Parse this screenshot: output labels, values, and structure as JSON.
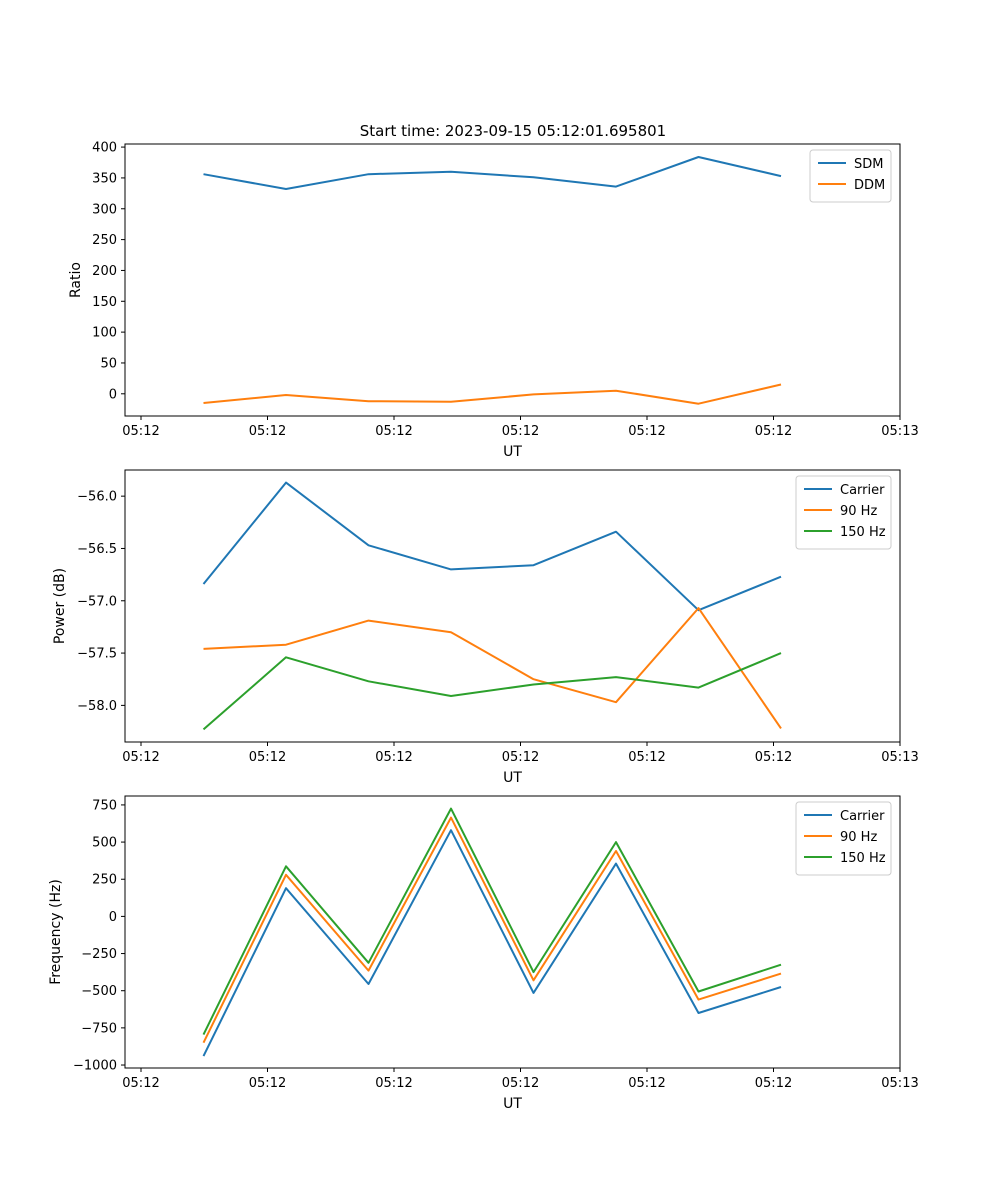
{
  "figure_title": "Start time: 2023-09-15 05:12:01.695801",
  "colors": {
    "blue": "#1f77b4",
    "orange": "#ff7f0e",
    "green": "#2ca02c"
  },
  "chart_data": [
    {
      "type": "line",
      "xlabel": "UT",
      "ylabel": "Ratio",
      "x_tick_labels": [
        "05:12",
        "05:12",
        "05:12",
        "05:12",
        "05:12",
        "05:12",
        "05:13"
      ],
      "ylim": [
        -36,
        405
      ],
      "y_ticks": [
        0,
        50,
        100,
        150,
        200,
        250,
        300,
        350,
        400
      ],
      "legend_position": "top-right",
      "series": [
        {
          "name": "SDM",
          "color": "#1f77b4",
          "values": [
            356,
            332,
            356,
            360,
            351,
            336,
            384,
            353
          ]
        },
        {
          "name": "DDM",
          "color": "#ff7f0e",
          "values": [
            -15,
            -2,
            -12,
            -13,
            -1,
            5,
            -16,
            15
          ]
        }
      ]
    },
    {
      "type": "line",
      "xlabel": "UT",
      "ylabel": "Power (dB)",
      "x_tick_labels": [
        "05:12",
        "05:12",
        "05:12",
        "05:12",
        "05:12",
        "05:12",
        "05:13"
      ],
      "ylim": [
        -58.35,
        -55.75
      ],
      "y_ticks": [
        -56.0,
        -56.5,
        -57.0,
        -57.5,
        -58.0
      ],
      "y_tick_labels": [
        "−56.0",
        "−56.5",
        "−57.0",
        "−57.5",
        "−58.0"
      ],
      "legend_position": "top-right",
      "series": [
        {
          "name": "Carrier",
          "color": "#1f77b4",
          "values": [
            -56.84,
            -55.87,
            -56.47,
            -56.7,
            -56.66,
            -56.34,
            -57.09,
            -56.77
          ]
        },
        {
          "name": "90 Hz",
          "color": "#ff7f0e",
          "values": [
            -57.46,
            -57.42,
            -57.19,
            -57.3,
            -57.75,
            -57.97,
            -57.07,
            -58.22
          ]
        },
        {
          "name": "150 Hz",
          "color": "#2ca02c",
          "values": [
            -58.23,
            -57.54,
            -57.77,
            -57.91,
            -57.8,
            -57.73,
            -57.83,
            -57.5
          ]
        }
      ]
    },
    {
      "type": "line",
      "xlabel": "UT",
      "ylabel": "Frequency (Hz)",
      "x_tick_labels": [
        "05:12",
        "05:12",
        "05:12",
        "05:12",
        "05:12",
        "05:12",
        "05:13"
      ],
      "ylim": [
        -1020,
        810
      ],
      "y_ticks": [
        750,
        500,
        250,
        0,
        -250,
        -500,
        -750,
        -1000
      ],
      "y_tick_labels": [
        "750",
        "500",
        "250",
        "0",
        "−250",
        "−500",
        "−750",
        "−1000"
      ],
      "legend_position": "top-right",
      "series": [
        {
          "name": "Carrier",
          "color": "#1f77b4",
          "values": [
            -940,
            190,
            -455,
            580,
            -515,
            355,
            -650,
            -475
          ]
        },
        {
          "name": "90 Hz",
          "color": "#ff7f0e",
          "values": [
            -850,
            280,
            -365,
            665,
            -430,
            440,
            -560,
            -385
          ]
        },
        {
          "name": "150 Hz",
          "color": "#2ca02c",
          "values": [
            -795,
            337,
            -312,
            725,
            -375,
            500,
            -505,
            -325
          ]
        }
      ]
    }
  ]
}
